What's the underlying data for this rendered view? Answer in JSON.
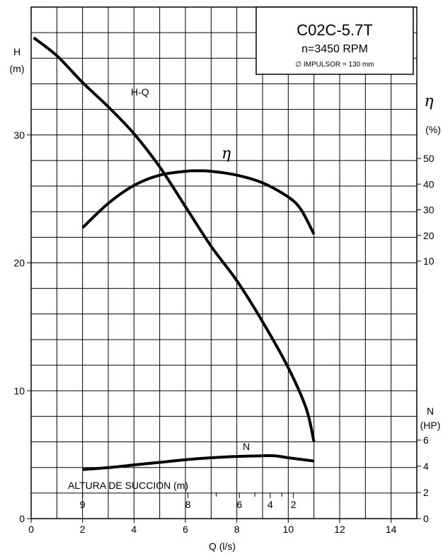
{
  "chart_data": {
    "type": "line",
    "title_box": {
      "model": "C02C-5.7T",
      "speed": "n=3450 RPM",
      "impeller": "∅ IMPULSOR = 130 mm"
    },
    "x_axis": {
      "label": "Q  (l/s)",
      "range": [
        0,
        15
      ],
      "ticks": [
        0,
        2,
        4,
        6,
        8,
        10,
        12,
        14
      ],
      "tick_labels": [
        "0",
        "2",
        "4",
        "6",
        "8",
        "10",
        "12",
        "14"
      ]
    },
    "y_axis_left": {
      "label_line1": "H",
      "label_line2": "(m)",
      "range": [
        0,
        40
      ],
      "ticks": [
        0,
        10,
        20,
        30
      ],
      "tick_labels": [
        "0",
        "10",
        "20",
        "30"
      ]
    },
    "y_axis_efficiency": {
      "symbol": "η",
      "unit": "(%)",
      "ticks": [
        10,
        20,
        30,
        40,
        50
      ],
      "tick_labels": [
        "10",
        "20",
        "30",
        "40",
        "50"
      ]
    },
    "y_axis_power": {
      "label_line1": "N",
      "label_line2": "(HP)",
      "ticks": [
        0,
        2,
        4,
        6
      ],
      "tick_labels": [
        "0",
        "2",
        "4",
        "6"
      ]
    },
    "suction_scale": {
      "label": "ALTURA DE SUCCION (m)",
      "marks": [
        {
          "label": "9",
          "q": 2.0
        },
        {
          "label": "8",
          "q": 6.1
        },
        {
          "label": "6",
          "q": 8.1
        },
        {
          "label": "4",
          "q": 9.3
        },
        {
          "label": "2",
          "q": 10.2
        }
      ]
    },
    "grid": true,
    "series": [
      {
        "name": "H-Q",
        "axis": "left",
        "unit": "m",
        "points": [
          [
            0.1,
            37.6
          ],
          [
            1.0,
            36.2
          ],
          [
            2.0,
            34.1
          ],
          [
            3.0,
            32.2
          ],
          [
            4.0,
            30.1
          ],
          [
            5.0,
            27.5
          ],
          [
            6.0,
            24.4
          ],
          [
            7.0,
            21.3
          ],
          [
            8.0,
            18.6
          ],
          [
            9.0,
            15.4
          ],
          [
            10.0,
            11.8
          ],
          [
            10.7,
            8.6
          ],
          [
            11.0,
            6.0
          ]
        ]
      },
      {
        "name": "η",
        "axis": "efficiency",
        "unit": "%",
        "points": [
          [
            2.0,
            23.0
          ],
          [
            3.0,
            32.5
          ],
          [
            4.0,
            39.5
          ],
          [
            5.0,
            43.5
          ],
          [
            6.0,
            45.0
          ],
          [
            6.5,
            45.2
          ],
          [
            7.0,
            45.0
          ],
          [
            8.0,
            43.5
          ],
          [
            9.0,
            40.5
          ],
          [
            10.0,
            35.0
          ],
          [
            10.5,
            30.0
          ],
          [
            11.0,
            20.5
          ]
        ]
      },
      {
        "name": "N",
        "axis": "power",
        "unit": "HP",
        "points": [
          [
            2.0,
            3.75
          ],
          [
            3.0,
            3.9
          ],
          [
            4.0,
            4.1
          ],
          [
            5.0,
            4.3
          ],
          [
            6.0,
            4.5
          ],
          [
            7.0,
            4.65
          ],
          [
            8.0,
            4.75
          ],
          [
            9.0,
            4.8
          ],
          [
            9.5,
            4.8
          ],
          [
            10.0,
            4.65
          ],
          [
            11.0,
            4.4
          ]
        ]
      }
    ],
    "curve_labels": {
      "hq": "H-Q",
      "eta": "η",
      "n": "N"
    }
  }
}
